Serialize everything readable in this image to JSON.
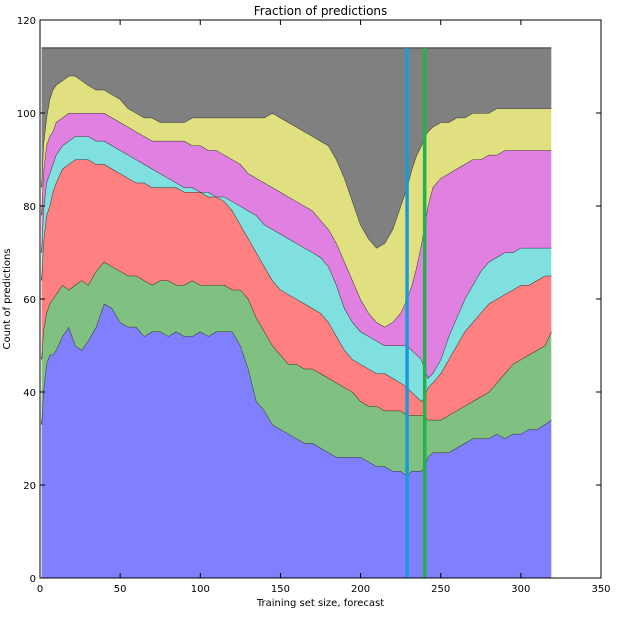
{
  "chart_data": {
    "type": "area",
    "title": "Fraction of predictions",
    "xlabel": "Training set size, forecast",
    "ylabel": "Count of predictions",
    "xlim": [
      0,
      350
    ],
    "ylim": [
      0,
      120
    ],
    "xticks": [
      0,
      50,
      100,
      150,
      200,
      250,
      300,
      350
    ],
    "yticks": [
      0,
      20,
      40,
      60,
      80,
      100,
      120
    ],
    "grid": false,
    "stacked": true,
    "x": [
      1,
      2,
      4,
      6,
      8,
      10,
      14,
      18,
      22,
      26,
      30,
      35,
      40,
      45,
      50,
      55,
      60,
      65,
      70,
      75,
      80,
      85,
      90,
      95,
      100,
      105,
      110,
      115,
      120,
      125,
      130,
      135,
      140,
      145,
      150,
      155,
      160,
      165,
      170,
      175,
      180,
      185,
      190,
      195,
      200,
      205,
      210,
      215,
      220,
      225,
      229,
      232,
      235,
      238,
      240,
      242,
      245,
      250,
      255,
      260,
      265,
      270,
      275,
      280,
      285,
      290,
      295,
      300,
      305,
      310,
      315,
      319
    ],
    "cumulative_tops": [
      [
        33,
        40,
        46,
        48,
        48,
        49,
        52,
        54,
        50,
        49,
        51,
        54,
        59,
        58,
        55,
        54,
        54,
        52,
        53,
        53,
        52,
        53,
        52,
        52,
        53,
        52,
        53,
        53,
        53,
        50,
        45,
        38,
        36,
        33,
        32,
        31,
        30,
        29,
        29,
        28,
        27,
        26,
        26,
        26,
        26,
        25,
        24,
        24,
        23,
        23,
        22,
        23,
        23,
        23,
        24,
        26,
        27,
        27,
        27,
        28,
        29,
        30,
        30,
        30,
        31,
        30,
        31,
        31,
        32,
        32,
        33,
        34
      ],
      [
        47,
        53,
        57,
        59,
        60,
        61,
        63,
        62,
        63,
        64,
        63,
        66,
        68,
        67,
        66,
        65,
        65,
        64,
        63,
        64,
        64,
        63,
        63,
        64,
        63,
        63,
        63,
        63,
        62,
        62,
        60,
        56,
        53,
        50,
        48,
        46,
        46,
        45,
        45,
        44,
        43,
        42,
        41,
        40,
        38,
        37,
        37,
        36,
        36,
        36,
        35,
        35,
        35,
        35,
        35,
        34,
        34,
        34,
        35,
        36,
        37,
        38,
        39,
        40,
        42,
        44,
        46,
        47,
        48,
        49,
        50,
        53
      ],
      [
        64,
        72,
        78,
        80,
        83,
        85,
        88,
        89,
        90,
        90,
        90,
        89,
        89,
        88,
        87,
        86,
        85,
        85,
        84,
        84,
        84,
        84,
        83,
        83,
        83,
        82,
        82,
        81,
        79,
        76,
        73,
        70,
        67,
        64,
        62,
        61,
        60,
        59,
        58,
        57,
        55,
        52,
        49,
        47,
        46,
        45,
        44,
        44,
        43,
        42,
        41,
        40,
        39,
        38,
        39,
        41,
        42,
        44,
        47,
        50,
        53,
        55,
        57,
        59,
        60,
        61,
        62,
        63,
        63,
        64,
        65,
        65
      ],
      [
        70,
        79,
        85,
        87,
        89,
        91,
        93,
        94,
        95,
        95,
        95,
        94,
        94,
        93,
        92,
        91,
        90,
        89,
        88,
        87,
        86,
        85,
        84,
        84,
        83,
        83,
        82,
        82,
        81,
        80,
        79,
        78,
        76,
        75,
        74,
        73,
        72,
        71,
        70,
        69,
        67,
        63,
        58,
        55,
        53,
        52,
        51,
        50,
        50,
        50,
        50,
        49,
        48,
        47,
        45,
        43,
        44,
        47,
        52,
        56,
        60,
        63,
        66,
        68,
        69,
        70,
        70,
        71,
        71,
        71,
        71,
        71
      ],
      [
        78,
        87,
        93,
        95,
        96,
        98,
        99,
        100,
        100,
        100,
        100,
        100,
        100,
        99,
        98,
        97,
        96,
        95,
        94,
        94,
        94,
        94,
        94,
        93,
        93,
        92,
        92,
        91,
        90,
        89,
        87,
        86,
        85,
        84,
        83,
        82,
        81,
        80,
        79,
        77,
        75,
        72,
        68,
        64,
        60,
        57,
        55,
        54,
        55,
        57,
        60,
        63,
        67,
        72,
        76,
        80,
        84,
        86,
        87,
        88,
        89,
        90,
        90,
        91,
        91,
        92,
        92,
        92,
        92,
        92,
        92,
        92
      ],
      [
        84,
        93,
        99,
        103,
        105,
        106,
        107,
        108,
        108,
        107,
        106,
        105,
        105,
        104,
        103,
        101,
        100,
        99,
        99,
        98,
        98,
        98,
        98,
        99,
        99,
        99,
        99,
        99,
        99,
        99,
        99,
        99,
        99,
        100,
        99,
        98,
        97,
        96,
        95,
        94,
        93,
        90,
        86,
        81,
        76,
        73,
        71,
        72,
        75,
        80,
        84,
        88,
        91,
        93,
        95,
        96,
        97,
        98,
        98,
        99,
        99,
        100,
        100,
        100,
        101,
        101,
        101,
        101,
        101,
        101,
        101,
        101
      ],
      [
        114,
        114,
        114,
        114,
        114,
        114,
        114,
        114,
        114,
        114,
        114,
        114,
        114,
        114,
        114,
        114,
        114,
        114,
        114,
        114,
        114,
        114,
        114,
        114,
        114,
        114,
        114,
        114,
        114,
        114,
        114,
        114,
        114,
        114,
        114,
        114,
        114,
        114,
        114,
        114,
        114,
        114,
        114,
        114,
        114,
        114,
        114,
        114,
        114,
        114,
        114,
        114,
        114,
        114,
        114,
        114,
        114,
        114,
        114,
        114,
        114,
        114,
        114,
        114,
        114,
        114,
        114,
        114,
        114,
        114,
        114,
        114
      ]
    ],
    "series_colors": [
      "#8080ff",
      "#80c080",
      "#ff8080",
      "#80e0e0",
      "#e080e0",
      "#e0e080",
      "#808080"
    ],
    "vertical_lines": [
      {
        "x": 229,
        "color": "#1a9ad6"
      },
      {
        "x": 240,
        "color": "#22b24c"
      }
    ]
  }
}
